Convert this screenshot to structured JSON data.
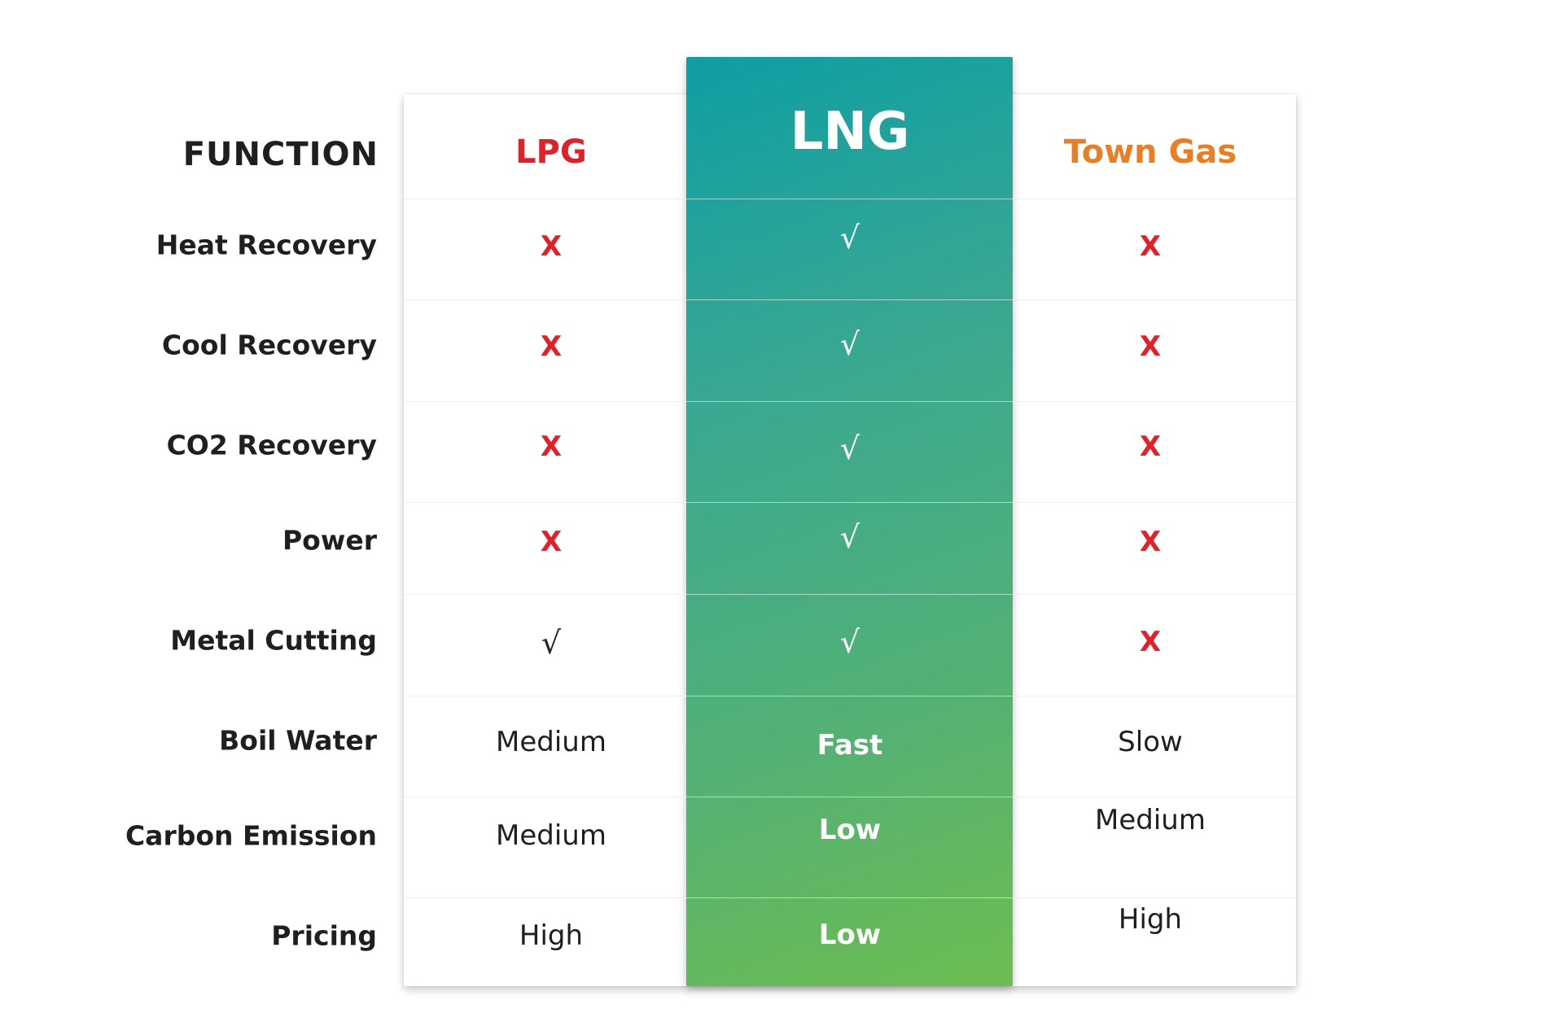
{
  "header": {
    "function_label": "FUNCTION",
    "columns": [
      {
        "name": "LPG",
        "color": "#e22027"
      },
      {
        "name": "LNG",
        "color": "#ffffff"
      },
      {
        "name": "Town Gas",
        "color": "#ea7e23"
      }
    ]
  },
  "symbols": {
    "cross": "X",
    "check": "√"
  },
  "rows": [
    {
      "label": "Heat Recovery",
      "lpg": "X",
      "lng": "√",
      "town_gas": "X"
    },
    {
      "label": "Cool Recovery",
      "lpg": "X",
      "lng": "√",
      "town_gas": "X"
    },
    {
      "label": "CO2 Recovery",
      "lpg": "X",
      "lng": "√",
      "town_gas": "X"
    },
    {
      "label": "Power",
      "lpg": "X",
      "lng": "√",
      "town_gas": "X"
    },
    {
      "label": "Metal Cutting",
      "lpg": "√",
      "lng": "√",
      "town_gas": "X"
    },
    {
      "label": "Boil Water",
      "lpg": "Medium",
      "lng": "Fast",
      "town_gas": "Slow"
    },
    {
      "label": "Carbon Emission",
      "lpg": "Medium",
      "lng": "Low",
      "town_gas": "Medium"
    },
    {
      "label": "Pricing",
      "lpg": "High",
      "lng": "Low",
      "town_gas": "High"
    }
  ],
  "colors": {
    "cross": "#e22027",
    "lng_gradient_start": "#0e9ea4",
    "lng_gradient_end": "#6dbd50",
    "town_gas_accent": "#ea7e23",
    "lpg_accent": "#e22027"
  }
}
